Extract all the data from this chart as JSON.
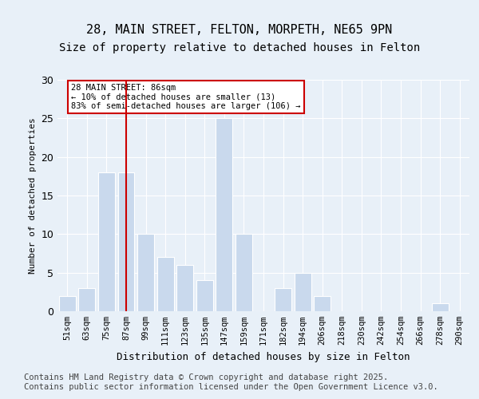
{
  "title1": "28, MAIN STREET, FELTON, MORPETH, NE65 9PN",
  "title2": "Size of property relative to detached houses in Felton",
  "xlabel": "Distribution of detached houses by size in Felton",
  "ylabel": "Number of detached properties",
  "footnote": "Contains HM Land Registry data © Crown copyright and database right 2025.\nContains public sector information licensed under the Open Government Licence v3.0.",
  "categories": [
    "51sqm",
    "63sqm",
    "75sqm",
    "87sqm",
    "99sqm",
    "111sqm",
    "123sqm",
    "135sqm",
    "147sqm",
    "159sqm",
    "171sqm",
    "182sqm",
    "194sqm",
    "206sqm",
    "218sqm",
    "230sqm",
    "242sqm",
    "254sqm",
    "266sqm",
    "278sqm",
    "290sqm"
  ],
  "values": [
    2,
    3,
    18,
    18,
    10,
    7,
    6,
    4,
    25,
    10,
    0,
    3,
    5,
    2,
    0,
    0,
    0,
    0,
    0,
    1,
    0
  ],
  "bar_color": "#c9d9ed",
  "bar_edge_color": "#ffffff",
  "annotation_text": "28 MAIN STREET: 86sqm\n← 10% of detached houses are smaller (13)\n83% of semi-detached houses are larger (106) →",
  "annotation_box_color": "#ffffff",
  "annotation_box_edge_color": "#cc0000",
  "vline_color": "#cc0000",
  "vline_x_index": 3,
  "ylim": [
    0,
    30
  ],
  "yticks": [
    0,
    5,
    10,
    15,
    20,
    25,
    30
  ],
  "bg_color": "#e8f0f8",
  "plot_bg_color": "#e8f0f8",
  "grid_color": "#ffffff",
  "title1_fontsize": 11,
  "title2_fontsize": 10,
  "footnote_fontsize": 7.5
}
